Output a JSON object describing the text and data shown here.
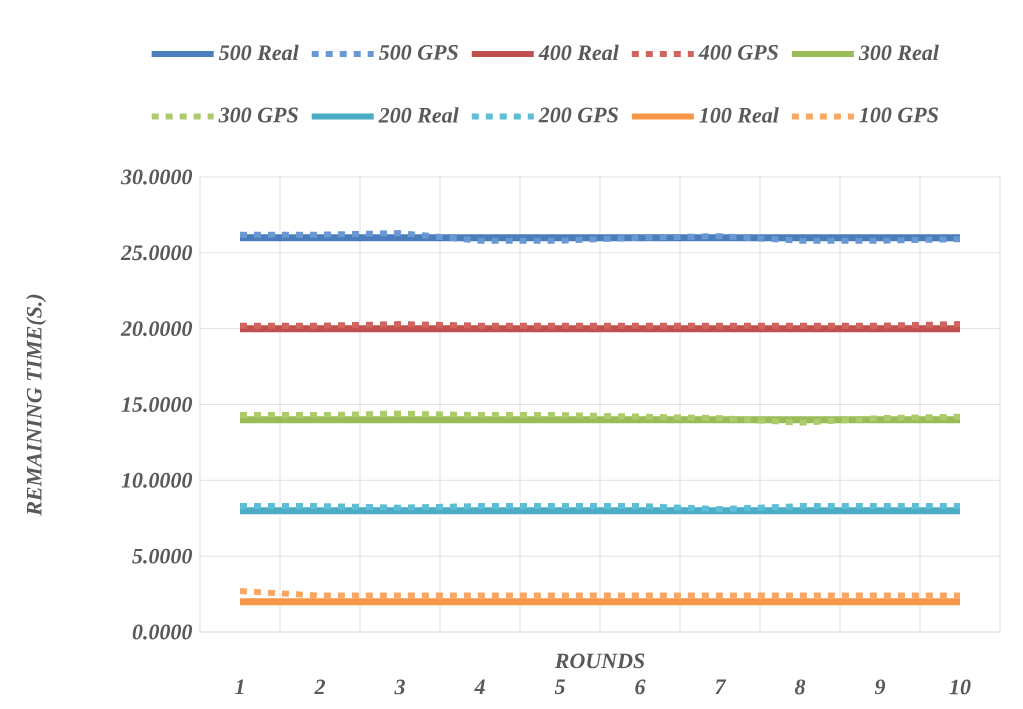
{
  "chart_data": {
    "type": "line",
    "xlabel": "ROUNDS",
    "ylabel": "REMAINING TIME(S.)",
    "categories": [
      "1",
      "2",
      "3",
      "4",
      "5",
      "6",
      "7",
      "8",
      "9",
      "10"
    ],
    "ylim": [
      0,
      30
    ],
    "yticks": [
      {
        "value": 0,
        "label": "0.0000"
      },
      {
        "value": 5,
        "label": "5.0000"
      },
      {
        "value": 10,
        "label": "10.0000"
      },
      {
        "value": 15,
        "label": "15.0000"
      },
      {
        "value": 20,
        "label": "20.0000"
      },
      {
        "value": 25,
        "label": "25.0000"
      },
      {
        "value": 30,
        "label": "30.0000"
      }
    ],
    "grid": true,
    "legend": "top",
    "marker": "none",
    "series": [
      {
        "name": "500 Real",
        "color": "#4a7dbb",
        "line_style": "solid",
        "values": [
          26.0,
          26.0,
          26.0,
          26.0,
          26.0,
          26.0,
          26.0,
          26.0,
          26.0,
          26.0
        ]
      },
      {
        "name": "500 GPS",
        "color": "#6a98d4",
        "line_style": "dotted",
        "values": [
          26.2,
          26.2,
          26.3,
          25.8,
          25.8,
          26.0,
          26.1,
          25.8,
          25.8,
          25.9
        ]
      },
      {
        "name": "400 Real",
        "color": "#c0504d",
        "line_style": "solid",
        "values": [
          20.0,
          20.0,
          20.0,
          20.0,
          20.0,
          20.0,
          20.0,
          20.0,
          20.0,
          20.0
        ]
      },
      {
        "name": "400 GPS",
        "color": "#d2645f",
        "line_style": "dotted",
        "values": [
          20.2,
          20.2,
          20.3,
          20.2,
          20.2,
          20.2,
          20.2,
          20.2,
          20.2,
          20.3
        ]
      },
      {
        "name": "300 Real",
        "color": "#9bbb59",
        "line_style": "solid",
        "values": [
          14.0,
          14.0,
          14.0,
          14.0,
          14.0,
          14.0,
          14.0,
          14.0,
          14.0,
          14.0
        ]
      },
      {
        "name": "300 GPS",
        "color": "#accb6a",
        "line_style": "dotted",
        "values": [
          14.3,
          14.3,
          14.4,
          14.3,
          14.3,
          14.2,
          14.1,
          13.8,
          14.1,
          14.2
        ]
      },
      {
        "name": "200 Real",
        "color": "#4bacc6",
        "line_style": "solid",
        "values": [
          8.0,
          8.0,
          8.0,
          8.0,
          8.0,
          8.0,
          8.0,
          8.0,
          8.0,
          8.0
        ]
      },
      {
        "name": "200 GPS",
        "color": "#5fbdd6",
        "line_style": "dotted",
        "values": [
          8.3,
          8.3,
          8.2,
          8.3,
          8.3,
          8.3,
          8.1,
          8.3,
          8.3,
          8.3
        ]
      },
      {
        "name": "100 Real",
        "color": "#f79646",
        "line_style": "solid",
        "values": [
          2.0,
          2.0,
          2.0,
          2.0,
          2.0,
          2.0,
          2.0,
          2.0,
          2.0,
          2.0
        ]
      },
      {
        "name": "100 GPS",
        "color": "#f9a763",
        "line_style": "dotted",
        "values": [
          2.7,
          2.4,
          2.4,
          2.4,
          2.4,
          2.4,
          2.4,
          2.4,
          2.4,
          2.4
        ]
      }
    ]
  }
}
